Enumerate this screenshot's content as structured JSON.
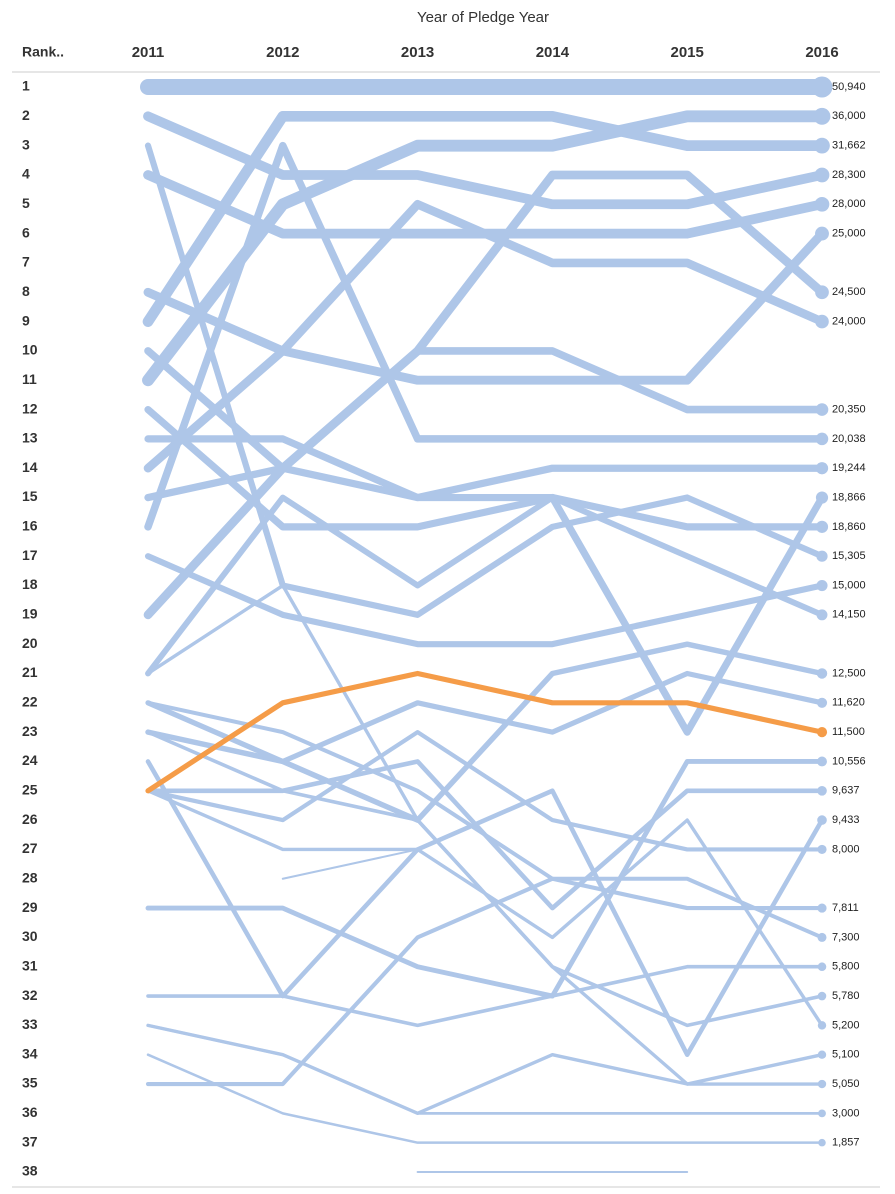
{
  "chart_data": {
    "type": "bump",
    "title": "Year of Pledge Year",
    "y_label": "Rank..",
    "categories": [
      "2011",
      "2012",
      "2013",
      "2014",
      "2015",
      "2016"
    ],
    "ylim": [
      1,
      38
    ],
    "yticks": [
      1,
      2,
      3,
      4,
      5,
      6,
      7,
      8,
      9,
      10,
      11,
      12,
      13,
      14,
      15,
      16,
      17,
      18,
      19,
      20,
      21,
      22,
      23,
      24,
      25,
      26,
      27,
      28,
      29,
      30,
      31,
      32,
      33,
      34,
      35,
      36,
      37,
      38
    ],
    "series": [
      {
        "ranks": [
          1,
          1,
          1,
          1,
          1,
          1
        ],
        "value": 50940,
        "value_label": "50,940",
        "color": "#aec6e8"
      },
      {
        "ranks": [
          11,
          5,
          3,
          3,
          2,
          2
        ],
        "value": 36000,
        "value_label": "36,000",
        "color": "#aec6e8"
      },
      {
        "ranks": [
          9,
          2,
          2,
          2,
          3,
          3
        ],
        "value": 31662,
        "value_label": "31,662",
        "color": "#aec6e8"
      },
      {
        "ranks": [
          2,
          4,
          4,
          5,
          5,
          4
        ],
        "value": 28300,
        "value_label": "28,300",
        "color": "#aec6e8"
      },
      {
        "ranks": [
          4,
          6,
          6,
          6,
          6,
          5
        ],
        "value": 28000,
        "value_label": "28,000",
        "color": "#aec6e8"
      },
      {
        "ranks": [
          8,
          10,
          11,
          11,
          11,
          6
        ],
        "value": 25000,
        "value_label": "25,000",
        "color": "#aec6e8"
      },
      {
        "ranks": [
          19,
          14,
          10,
          4,
          4,
          8
        ],
        "value": 24500,
        "value_label": "24,500",
        "color": "#aec6e8"
      },
      {
        "ranks": [
          14,
          10,
          5,
          7,
          7,
          9
        ],
        "value": 24000,
        "value_label": "24,000",
        "color": "#aec6e8"
      },
      {
        "ranks": [
          10,
          14,
          10,
          10,
          12,
          12
        ],
        "value": 20350,
        "value_label": "20,350",
        "color": "#aec6e8"
      },
      {
        "ranks": [
          16,
          3,
          13,
          13,
          13,
          13
        ],
        "value": 20038,
        "value_label": "20,038",
        "color": "#aec6e8"
      },
      {
        "ranks": [
          15,
          14,
          15,
          14,
          14,
          14
        ],
        "value": 19244,
        "value_label": "19,244",
        "color": "#aec6e8"
      },
      {
        "ranks": [
          12,
          16,
          16,
          15,
          23,
          15
        ],
        "value": 18866,
        "value_label": "18,866",
        "color": "#aec6e8"
      },
      {
        "ranks": [
          13,
          13,
          15,
          15,
          16,
          16
        ],
        "value": 18860,
        "value_label": "18,860",
        "color": "#aec6e8"
      },
      {
        "ranks": [
          3,
          18,
          19,
          16,
          15,
          17
        ],
        "value": 15305,
        "value_label": "15,305",
        "color": "#aec6e8"
      },
      {
        "ranks": [
          17,
          19,
          20,
          20,
          19,
          18
        ],
        "value": 15000,
        "value_label": "15,000",
        "color": "#aec6e8"
      },
      {
        "ranks": [
          21,
          15,
          18,
          15,
          17,
          19
        ],
        "value": 14150,
        "value_label": "14,150",
        "color": "#aec6e8"
      },
      {
        "ranks": [
          23,
          24,
          26,
          21,
          20,
          21
        ],
        "value": 12500,
        "value_label": "12,500",
        "color": "#aec6e8"
      },
      {
        "ranks": [
          22,
          24,
          22,
          23,
          21,
          22
        ],
        "value": 11620,
        "value_label": "11,620",
        "color": "#aec6e8"
      },
      {
        "ranks": [
          29,
          29,
          31,
          32,
          24,
          24
        ],
        "value": 10556,
        "value_label": "10,556",
        "color": "#aec6e8"
      },
      {
        "ranks": [
          25,
          25,
          24,
          29,
          25,
          25
        ],
        "value": 9637,
        "value_label": "9,637",
        "color": "#aec6e8"
      },
      {
        "ranks": [
          24,
          32,
          27,
          25,
          34,
          26
        ],
        "value": 9433,
        "value_label": "9,433",
        "color": "#aec6e8"
      },
      {
        "ranks": [
          25,
          26,
          23,
          26,
          27,
          27
        ],
        "value": 8000,
        "value_label": "8,000",
        "color": "#aec6e8"
      },
      {
        "ranks": [
          35,
          35,
          30,
          28,
          29,
          29
        ],
        "value": 7811,
        "value_label": "7,811",
        "color": "#aec6e8"
      },
      {
        "ranks": [
          22,
          23,
          25,
          28,
          28,
          30
        ],
        "value": 7300,
        "value_label": "7,300",
        "color": "#aec6e8"
      },
      {
        "ranks": [
          32,
          32,
          33,
          32,
          31,
          31
        ],
        "value": 5800,
        "value_label": "5,800",
        "color": "#aec6e8"
      },
      {
        "ranks": [
          23,
          25,
          26,
          31,
          33,
          32
        ],
        "value": 5780,
        "value_label": "5,780",
        "color": "#aec6e8"
      },
      {
        "ranks": [
          25,
          27,
          27,
          30,
          26,
          33
        ],
        "value": 5200,
        "value_label": "5,200",
        "color": "#aec6e8"
      },
      {
        "ranks": [
          21,
          18,
          26,
          31,
          35,
          34
        ],
        "value": 5100,
        "value_label": "5,100",
        "color": "#aec6e8"
      },
      {
        "ranks": [
          33,
          34,
          36,
          34,
          35,
          35
        ],
        "value": 5050,
        "value_label": "5,050",
        "color": "#aec6e8"
      },
      {
        "ranks": [
          33,
          34,
          36,
          36,
          36,
          36
        ],
        "value": 3000,
        "value_label": "3,000",
        "color": "#aec6e8"
      },
      {
        "ranks": [
          34,
          36,
          37,
          37,
          37,
          37
        ],
        "value": 1857,
        "value_label": "1,857",
        "color": "#aec6e8"
      },
      {
        "ranks": [
          null,
          28,
          27,
          null,
          null,
          null
        ],
        "color": "#aec6e8"
      },
      {
        "ranks": [
          null,
          null,
          38,
          38,
          38,
          null
        ],
        "color": "#aec6e8"
      },
      {
        "ranks": [
          25,
          22,
          21,
          22,
          22,
          23
        ],
        "value": 11500,
        "value_label": "11,500",
        "color": "#f59c48"
      }
    ]
  }
}
